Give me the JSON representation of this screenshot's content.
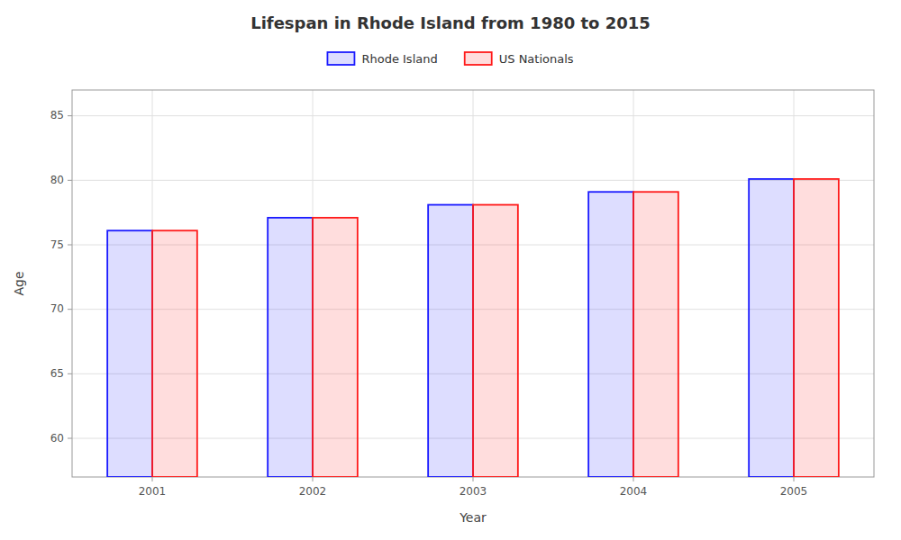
{
  "chart_data": {
    "type": "bar",
    "title": "Lifespan in Rhode Island from 1980 to 2015",
    "x_label": "Year",
    "y_label": "Age",
    "categories": [
      "2001",
      "2002",
      "2003",
      "2004",
      "2005"
    ],
    "series": [
      {
        "name": "Rhode Island",
        "color": "#1a1aff",
        "values": [
          76.1,
          77.1,
          78.1,
          79.1,
          80.1
        ]
      },
      {
        "name": "US Nationals",
        "color": "#ff1a1a",
        "values": [
          76.1,
          77.1,
          78.1,
          79.1,
          80.1
        ]
      }
    ],
    "ylim": [
      57,
      87
    ],
    "yticks": [
      60,
      65,
      70,
      75,
      80,
      85
    ],
    "grid": true,
    "legend": "top"
  }
}
